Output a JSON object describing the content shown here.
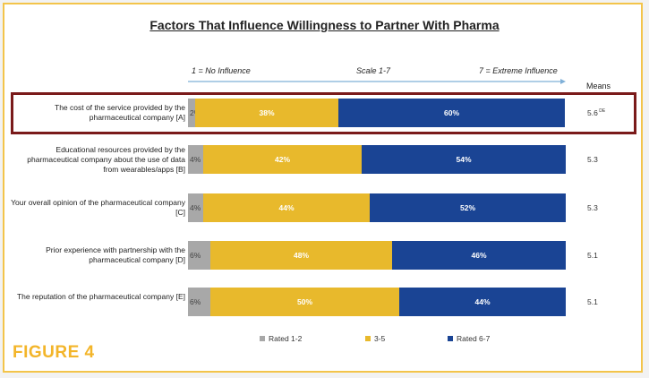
{
  "colors": {
    "low": "#a8a8a8",
    "mid": "#e8b92c",
    "high": "#1a4494",
    "highlight": "#7a1a1a",
    "figure": "#f3b52a"
  },
  "figure_label": "FIGURE 4",
  "chart_data": {
    "type": "bar",
    "orientation": "horizontal-stacked",
    "title": "Factors That Influence Willingness to Partner With Pharma",
    "scale": {
      "low": "1 = No Influence",
      "center": "Scale 1-7",
      "high": "7 = Extreme Influence"
    },
    "means_label": "Means",
    "categories": [
      "The cost of the service provided by the pharmaceutical company [A]",
      "Educational resources provided by the pharmaceutical company about the use of data from wearables/apps [B]",
      "Your overall opinion of the pharmaceutical company [C]",
      "Prior experience with partnership with the pharmaceutical company [D]",
      "The reputation of the pharmaceutical company [E]"
    ],
    "series": [
      {
        "name": "Rated 1-2",
        "values": [
          2,
          4,
          4,
          6,
          6
        ]
      },
      {
        "name": "3-5",
        "values": [
          38,
          42,
          44,
          48,
          50
        ]
      },
      {
        "name": "Rated 6-7",
        "values": [
          60,
          54,
          52,
          46,
          44
        ]
      }
    ],
    "means": [
      "5.6",
      "5.3",
      "5.3",
      "5.1",
      "5.1"
    ],
    "mean_notes": [
      "DE",
      "",
      "",
      "",
      ""
    ],
    "highlighted_category_index": 0,
    "legend": [
      "Rated 1-2",
      "3-5",
      "Rated 6-7"
    ]
  }
}
